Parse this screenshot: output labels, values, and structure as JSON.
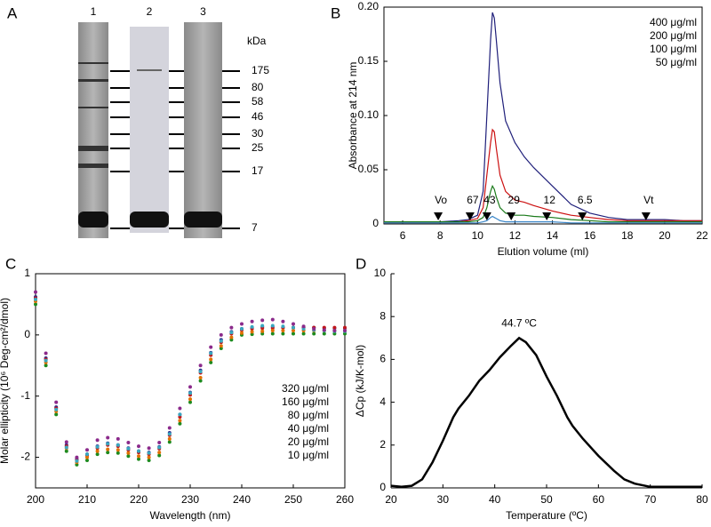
{
  "chart_data": [
    {
      "type": "gel",
      "panel": "A",
      "lanes": [
        "1",
        "2",
        "3"
      ],
      "unit": "kDa",
      "markers": [
        175,
        80,
        58,
        46,
        30,
        25,
        17,
        7
      ]
    },
    {
      "type": "line",
      "panel": "B",
      "x_label": "Elution volume (ml)",
      "y_label": "Absorbance at 214 nm",
      "xlim": [
        5,
        22
      ],
      "xticks": [
        6,
        8,
        10,
        12,
        14,
        16,
        18,
        20,
        22
      ],
      "ylim": [
        0,
        0.2
      ],
      "yticks": [
        0,
        0.05,
        {
          "value": 0.1,
          "label": "0.10"
        },
        0.15,
        {
          "value": 0.2,
          "label": "0.20"
        }
      ],
      "legend": "upper right",
      "x": [
        5,
        6,
        7,
        8,
        9,
        9.5,
        10,
        10.3,
        10.5,
        10.7,
        10.8,
        10.9,
        11,
        11.2,
        11.5,
        12,
        12.5,
        13,
        14,
        15,
        16,
        17,
        18,
        19,
        20,
        21,
        22
      ],
      "series": [
        {
          "name": "400 μg/ml",
          "color": "#1f1f7a",
          "values": [
            0.002,
            0.002,
            0.002,
            0.002,
            0.003,
            0.004,
            0.008,
            0.03,
            0.1,
            0.17,
            0.195,
            0.19,
            0.17,
            0.13,
            0.095,
            0.075,
            0.062,
            0.052,
            0.035,
            0.018,
            0.01,
            0.006,
            0.004,
            0.004,
            0.004,
            0.003,
            0.003
          ]
        },
        {
          "name": "200 μg/ml",
          "color": "#cc1111",
          "values": [
            0.002,
            0.002,
            0.002,
            0.002,
            0.002,
            0.003,
            0.005,
            0.015,
            0.045,
            0.075,
            0.087,
            0.085,
            0.07,
            0.045,
            0.03,
            0.022,
            0.02,
            0.017,
            0.012,
            0.008,
            0.006,
            0.004,
            0.003,
            0.003,
            0.003,
            0.003,
            0.003
          ]
        },
        {
          "name": "100 μg/ml",
          "color": "#1a7a1a",
          "values": [
            0.002,
            0.002,
            0.002,
            0.002,
            0.002,
            0.002,
            0.003,
            0.006,
            0.015,
            0.03,
            0.035,
            0.032,
            0.025,
            0.015,
            0.01,
            0.008,
            0.008,
            0.007,
            0.006,
            0.004,
            0.003,
            0.002,
            0.002,
            0.002,
            0.002,
            0.002,
            0.002
          ]
        },
        {
          "name": "50 μg/ml",
          "color": "#3a86c8",
          "values": [
            0.001,
            0.001,
            0.001,
            0.001,
            0.001,
            0.001,
            0.001,
            0.002,
            0.003,
            0.006,
            0.007,
            0.006,
            0.005,
            0.003,
            0.002,
            0.002,
            0.002,
            0.002,
            0.002,
            0.001,
            0.001,
            0.001,
            0.001,
            0.001,
            0.001,
            0.001,
            0.001
          ]
        }
      ],
      "markers": [
        {
          "label": "Vo",
          "x": 7.9
        },
        {
          "label": "67",
          "x": 9.6
        },
        {
          "label": "43",
          "x": 10.5
        },
        {
          "label": "29",
          "x": 11.8
        },
        {
          "label": "12",
          "x": 13.7
        },
        {
          "label": "6.5",
          "x": 15.6
        },
        {
          "label": "Vt",
          "x": 19
        }
      ]
    },
    {
      "type": "scatter",
      "panel": "C",
      "x_label": "Wavelength (nm)",
      "y_label": "Molar ellipticity (10⁶ Deg-cm²/dmol)",
      "xlim": [
        200,
        260
      ],
      "xticks": [
        200,
        210,
        220,
        230,
        240,
        250,
        260
      ],
      "ylim": [
        -2.5,
        1
      ],
      "yticks": [
        -2,
        -1,
        0,
        1
      ],
      "legend": "lower right",
      "x": [
        200,
        202,
        204,
        206,
        208,
        210,
        212,
        214,
        216,
        218,
        220,
        222,
        224,
        226,
        228,
        230,
        232,
        234,
        236,
        238,
        240,
        242,
        244,
        246,
        248,
        250,
        252,
        254,
        256,
        258,
        260
      ],
      "series": [
        {
          "name": "320 μg/ml",
          "color": "#2b2b8c",
          "values": [
            0.62,
            -0.38,
            -1.18,
            -1.8,
            -2.03,
            -1.95,
            -1.82,
            -1.77,
            -1.8,
            -1.85,
            -1.9,
            -1.92,
            -1.83,
            -1.6,
            -1.3,
            -0.94,
            -0.58,
            -0.29,
            -0.08,
            0.05,
            0.1,
            0.12,
            0.13,
            0.13,
            0.12,
            0.12,
            0.12,
            0.12,
            0.11,
            0.11,
            0.11
          ]
        },
        {
          "name": "160 μg/ml",
          "color": "#c0161b",
          "values": [
            0.6,
            -0.4,
            -1.2,
            -1.82,
            -2.05,
            -1.97,
            -1.85,
            -1.8,
            -1.82,
            -1.88,
            -1.92,
            -1.95,
            -1.86,
            -1.64,
            -1.34,
            -0.98,
            -0.62,
            -0.33,
            -0.12,
            0.02,
            0.08,
            0.1,
            0.11,
            0.11,
            0.12,
            0.12,
            0.12,
            0.12,
            0.12,
            0.12,
            0.12
          ]
        },
        {
          "name": "80 μg/ml",
          "color": "#1e8a1e",
          "values": [
            0.5,
            -0.5,
            -1.3,
            -1.9,
            -2.12,
            -2.05,
            -1.95,
            -1.92,
            -1.93,
            -1.98,
            -2.03,
            -2.05,
            -1.97,
            -1.75,
            -1.45,
            -1.1,
            -0.75,
            -0.45,
            -0.22,
            -0.08,
            0,
            0.01,
            0.02,
            0.02,
            0.02,
            0.02,
            0.02,
            0.02,
            0.02,
            0.02,
            0.02
          ]
        },
        {
          "name": "40 μg/ml",
          "color": "#e07000",
          "values": [
            0.55,
            -0.45,
            -1.25,
            -1.85,
            -2.08,
            -2.0,
            -1.9,
            -1.87,
            -1.88,
            -1.93,
            -1.98,
            -2.0,
            -1.92,
            -1.7,
            -1.4,
            -1.05,
            -0.7,
            -0.4,
            -0.18,
            -0.04,
            0.03,
            0.05,
            0.06,
            0.07,
            0.07,
            0.07,
            0.07,
            0.07,
            0.07,
            0.07,
            0.07
          ]
        },
        {
          "name": "20 μg/ml",
          "color": "#38a8c0",
          "values": [
            0.58,
            -0.42,
            -1.22,
            -1.84,
            -2.06,
            -1.95,
            -1.83,
            -1.78,
            -1.8,
            -1.86,
            -1.9,
            -1.93,
            -1.84,
            -1.62,
            -1.3,
            -0.95,
            -0.6,
            -0.3,
            -0.1,
            0.04,
            0.1,
            0.13,
            0.15,
            0.15,
            0.14,
            0.12,
            0.1,
            0.08,
            0.07,
            0.06,
            0.06
          ]
        },
        {
          "name": "10 μg/ml",
          "color": "#8b2a8b",
          "values": [
            0.7,
            -0.3,
            -1.1,
            -1.75,
            -2.0,
            -1.88,
            -1.72,
            -1.68,
            -1.7,
            -1.76,
            -1.82,
            -1.85,
            -1.76,
            -1.52,
            -1.2,
            -0.85,
            -0.5,
            -0.2,
            0.0,
            0.12,
            0.18,
            0.22,
            0.24,
            0.25,
            0.22,
            0.18,
            0.14,
            0.1,
            0.08,
            0.07,
            0.07
          ]
        }
      ]
    },
    {
      "type": "line",
      "panel": "D",
      "x_label": "Temperature (ºC)",
      "y_label": "ΔCp (kJ/K-mol)",
      "xlim": [
        20,
        80
      ],
      "xticks": [
        20,
        30,
        40,
        50,
        60,
        70,
        80
      ],
      "ylim": [
        0,
        10
      ],
      "yticks": [
        0,
        2,
        4,
        6,
        8,
        10
      ],
      "annotations": [
        "44.7 ºC"
      ],
      "x": [
        20,
        22,
        24,
        26,
        28,
        30,
        32,
        33,
        35,
        37,
        39,
        41,
        43,
        44.7,
        46,
        48,
        50,
        52,
        54,
        55,
        57,
        60,
        63,
        65,
        67,
        70,
        75,
        80
      ],
      "series": [
        {
          "color": "#000000",
          "values": [
            0.1,
            0.05,
            0.1,
            0.4,
            1.2,
            2.2,
            3.3,
            3.7,
            4.3,
            5.0,
            5.5,
            6.1,
            6.6,
            7.0,
            6.8,
            6.2,
            5.2,
            4.3,
            3.3,
            2.9,
            2.3,
            1.5,
            0.8,
            0.4,
            0.2,
            0.05,
            0.05,
            0.05
          ]
        }
      ]
    }
  ]
}
